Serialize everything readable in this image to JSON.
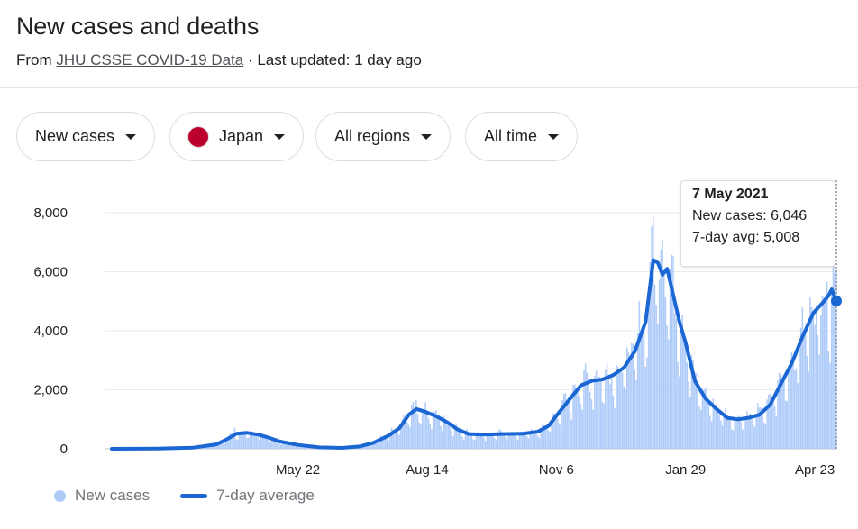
{
  "header": {
    "title": "New cases and deaths",
    "source_prefix": "From ",
    "source_link": "JHU CSSE COVID-19 Data",
    "source_suffix": " · Last updated: 1 day ago"
  },
  "filters": {
    "metric": "New cases",
    "country": "Japan",
    "region": "All regions",
    "range": "All time"
  },
  "colors": {
    "bars": "#aecbfa",
    "avg_line": "#1a66d2",
    "flag_red": "#bc002d",
    "grid": "#e8eaed"
  },
  "tooltip": {
    "date": "7 May 2021",
    "new_cases": "New cases: 6,046",
    "avg": "7-day avg: 5,008"
  },
  "legend": {
    "bars": "New cases",
    "line": "7-day average"
  },
  "chart_data": {
    "type": "bar",
    "title": "",
    "xlabel": "",
    "ylabel": "",
    "ylim": [
      0,
      8000
    ],
    "y_ticks": [
      0,
      2000,
      4000,
      6000,
      8000
    ],
    "y_tick_labels": [
      "0",
      "2,000",
      "4,000",
      "6,000",
      "8,000"
    ],
    "x_range": [
      "2020-01-22",
      "2021-05-07"
    ],
    "x_ticks": [
      {
        "date": "2020-05-22",
        "label": "May 22"
      },
      {
        "date": "2020-08-14",
        "label": "Aug 14"
      },
      {
        "date": "2020-11-06",
        "label": "Nov 6"
      },
      {
        "date": "2021-01-29",
        "label": "Jan 29"
      },
      {
        "date": "2021-04-23",
        "label": "Apr 23"
      }
    ],
    "legend_position": "bottom-left",
    "grid": true,
    "series": [
      {
        "name": "7-day average",
        "kind": "line",
        "points": [
          [
            "2020-01-22",
            0
          ],
          [
            "2020-02-20",
            10
          ],
          [
            "2020-03-15",
            40
          ],
          [
            "2020-03-30",
            150
          ],
          [
            "2020-04-05",
            300
          ],
          [
            "2020-04-12",
            510
          ],
          [
            "2020-04-19",
            540
          ],
          [
            "2020-04-26",
            480
          ],
          [
            "2020-05-03",
            380
          ],
          [
            "2020-05-10",
            250
          ],
          [
            "2020-05-22",
            130
          ],
          [
            "2020-06-05",
            50
          ],
          [
            "2020-06-20",
            30
          ],
          [
            "2020-07-01",
            80
          ],
          [
            "2020-07-10",
            200
          ],
          [
            "2020-07-20",
            450
          ],
          [
            "2020-07-27",
            700
          ],
          [
            "2020-08-02",
            1150
          ],
          [
            "2020-08-07",
            1350
          ],
          [
            "2020-08-12",
            1270
          ],
          [
            "2020-08-20",
            1100
          ],
          [
            "2020-08-27",
            900
          ],
          [
            "2020-09-03",
            650
          ],
          [
            "2020-09-10",
            500
          ],
          [
            "2020-09-20",
            480
          ],
          [
            "2020-10-01",
            500
          ],
          [
            "2020-10-15",
            510
          ],
          [
            "2020-10-25",
            580
          ],
          [
            "2020-11-01",
            780
          ],
          [
            "2020-11-08",
            1250
          ],
          [
            "2020-11-15",
            1700
          ],
          [
            "2020-11-22",
            2150
          ],
          [
            "2020-11-29",
            2300
          ],
          [
            "2020-12-06",
            2350
          ],
          [
            "2020-12-13",
            2500
          ],
          [
            "2020-12-20",
            2750
          ],
          [
            "2020-12-27",
            3300
          ],
          [
            "2021-01-03",
            4300
          ],
          [
            "2021-01-08",
            6400
          ],
          [
            "2021-01-11",
            6300
          ],
          [
            "2021-01-14",
            5900
          ],
          [
            "2021-01-17",
            6100
          ],
          [
            "2021-01-21",
            5200
          ],
          [
            "2021-01-25",
            4300
          ],
          [
            "2021-01-29",
            3600
          ],
          [
            "2021-02-04",
            2300
          ],
          [
            "2021-02-11",
            1700
          ],
          [
            "2021-02-18",
            1350
          ],
          [
            "2021-02-25",
            1050
          ],
          [
            "2021-03-04",
            1000
          ],
          [
            "2021-03-11",
            1050
          ],
          [
            "2021-03-18",
            1150
          ],
          [
            "2021-03-25",
            1500
          ],
          [
            "2021-04-01",
            2200
          ],
          [
            "2021-04-08",
            2900
          ],
          [
            "2021-04-15",
            3800
          ],
          [
            "2021-04-22",
            4600
          ],
          [
            "2021-04-29",
            5000
          ],
          [
            "2021-05-02",
            5200
          ],
          [
            "2021-05-04",
            5400
          ],
          [
            "2021-05-07",
            5008
          ]
        ]
      },
      {
        "name": "New cases",
        "kind": "bar",
        "values_from": "daily bars scattered around the 7-day average with weekly variation",
        "peaks": [
          [
            "2020-04-11",
            720
          ],
          [
            "2020-08-07",
            1650
          ],
          [
            "2021-01-08",
            7850
          ],
          [
            "2021-01-14",
            7100
          ],
          [
            "2021-05-07",
            6046
          ]
        ]
      }
    ]
  }
}
